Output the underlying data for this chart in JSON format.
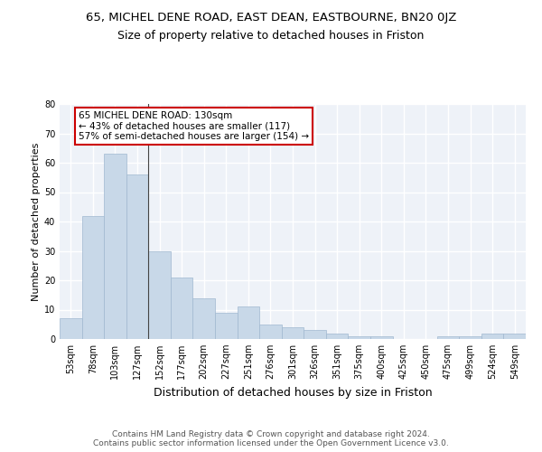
{
  "title_line1": "65, MICHEL DENE ROAD, EAST DEAN, EASTBOURNE, BN20 0JZ",
  "title_line2": "Size of property relative to detached houses in Friston",
  "xlabel": "Distribution of detached houses by size in Friston",
  "ylabel": "Number of detached properties",
  "footer": "Contains HM Land Registry data © Crown copyright and database right 2024.\nContains public sector information licensed under the Open Government Licence v3.0.",
  "categories": [
    "53sqm",
    "78sqm",
    "103sqm",
    "127sqm",
    "152sqm",
    "177sqm",
    "202sqm",
    "227sqm",
    "251sqm",
    "276sqm",
    "301sqm",
    "326sqm",
    "351sqm",
    "375sqm",
    "400sqm",
    "425sqm",
    "450sqm",
    "475sqm",
    "499sqm",
    "524sqm",
    "549sqm"
  ],
  "values": [
    7,
    42,
    63,
    56,
    30,
    21,
    14,
    9,
    11,
    5,
    4,
    3,
    2,
    1,
    1,
    0,
    0,
    1,
    1,
    2,
    2
  ],
  "bar_color": "#c8d8e8",
  "bar_edge_color": "#a0b8d0",
  "annotation_box_text": "65 MICHEL DENE ROAD: 130sqm\n← 43% of detached houses are smaller (117)\n57% of semi-detached houses are larger (154) →",
  "annotation_box_color": "#ffffff",
  "annotation_box_edge_color": "#cc0000",
  "ylim": [
    0,
    80
  ],
  "yticks": [
    0,
    10,
    20,
    30,
    40,
    50,
    60,
    70,
    80
  ],
  "background_color": "#eef2f8",
  "grid_color": "#ffffff",
  "title1_fontsize": 9.5,
  "title2_fontsize": 9,
  "xlabel_fontsize": 9,
  "ylabel_fontsize": 8,
  "tick_fontsize": 7,
  "footer_fontsize": 6.5,
  "ann_fontsize": 7.5
}
